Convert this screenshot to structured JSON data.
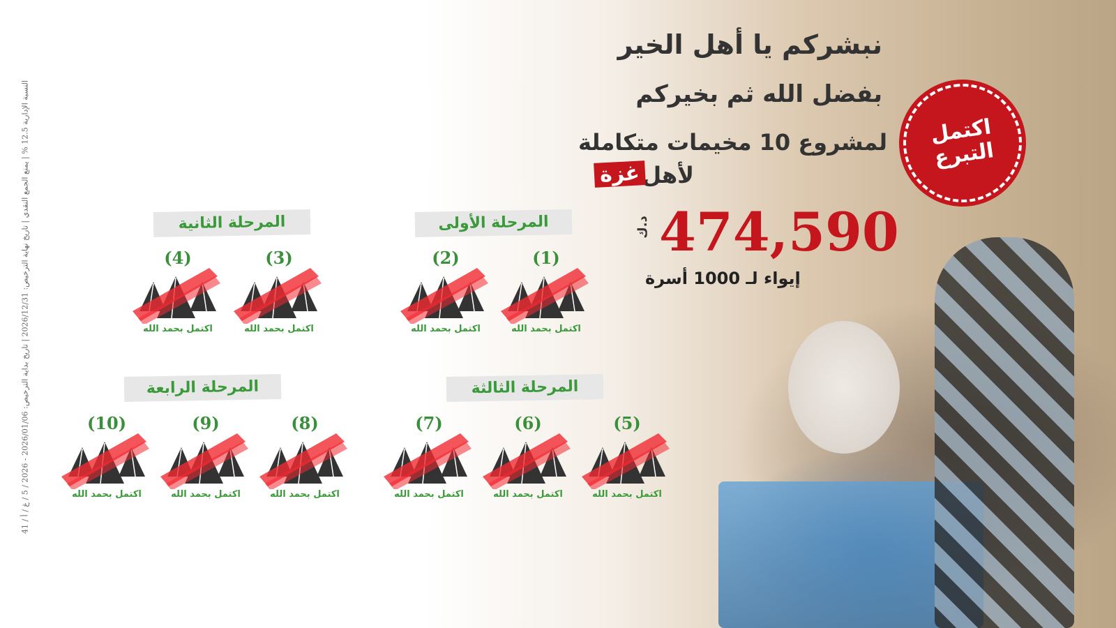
{
  "headline": {
    "line1": "نبشركم يا أهل الخير",
    "line2": "بفضل الله ثم بخيركم",
    "line3": "لمشروع 10 مخيمات متكاملة",
    "line4": "لأهل",
    "gaza": "غزة"
  },
  "amount": {
    "value": "474,590",
    "currency": "د.ك",
    "families": "إيواء لـ 1000 أسرة"
  },
  "seal": {
    "line1": "اكتمل",
    "line2": "التبرع",
    "color": "#c4161c"
  },
  "license_text": "النسبة الإدارية 12.5 % | يمنع الجمع النقدي | تاريخ نهاية الترخيص: 2026/12/31 | تاريخ بداية الترخيص: 2026/01/06 - 2026 / 5 / غ / أ / 41",
  "phases": [
    {
      "label": "المرحلة الأولى",
      "camps": [
        "(1)",
        "(2)"
      ]
    },
    {
      "label": "المرحلة الثانية",
      "camps": [
        "(3)",
        "(4)"
      ]
    },
    {
      "label": "المرحلة الثالثة",
      "camps": [
        "(5)",
        "(6)",
        "(7)"
      ]
    },
    {
      "label": "المرحلة الرابعة",
      "camps": [
        "(8)",
        "(9)",
        "(10)"
      ]
    }
  ],
  "camp_status": "اكتمل بحمد الله",
  "colors": {
    "accent_red": "#c4161c",
    "green": "#3a9a3a",
    "tent": "#333333"
  }
}
